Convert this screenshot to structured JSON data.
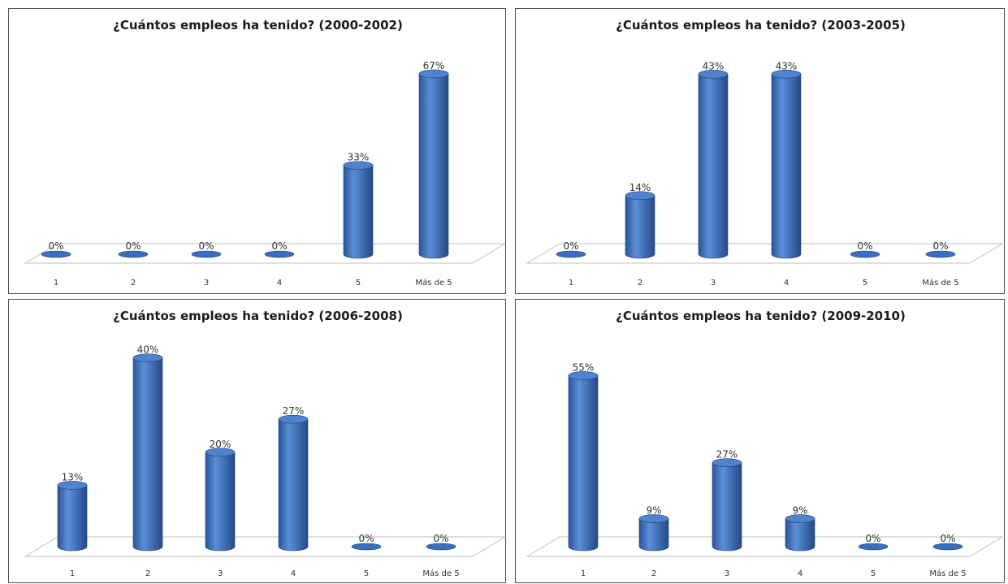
{
  "chart_data": [
    {
      "type": "bar",
      "title": "¿Cuántos empleos ha tenido? (2000-2002)",
      "categories": [
        "1",
        "2",
        "3",
        "4",
        "5",
        "Más de 5"
      ],
      "values": [
        0,
        0,
        0,
        0,
        33,
        67
      ],
      "labels": [
        "0%",
        "0%",
        "0%",
        "0%",
        "33%",
        "67%"
      ],
      "unit": "%",
      "ylim": [
        0,
        70
      ],
      "bar_color": "#3a6fc0"
    },
    {
      "type": "bar",
      "title": "¿Cuántos empleos ha tenido? (2003-2005)",
      "categories": [
        "1",
        "2",
        "3",
        "4",
        "5",
        "Más de 5"
      ],
      "values": [
        0,
        14,
        43,
        43,
        0,
        0
      ],
      "labels": [
        "0%",
        "14%",
        "43%",
        "43%",
        "0%",
        "0%"
      ],
      "unit": "%",
      "ylim": [
        0,
        45
      ],
      "bar_color": "#3a6fc0"
    },
    {
      "type": "bar",
      "title": "¿Cuántos empleos ha tenido? (2006-2008)",
      "categories": [
        "1",
        "2",
        "3",
        "4",
        "5",
        "Más de 5"
      ],
      "values": [
        13,
        40,
        20,
        27,
        0,
        0
      ],
      "labels": [
        "13%",
        "40%",
        "20%",
        "27%",
        "0%",
        "0%"
      ],
      "unit": "%",
      "ylim": [
        0,
        42
      ],
      "bar_color": "#3a6fc0"
    },
    {
      "type": "bar",
      "title": "¿Cuántos empleos ha tenido? (2009-2010)",
      "categories": [
        "1",
        "2",
        "3",
        "4",
        "5",
        "Más de 5"
      ],
      "values": [
        55,
        9,
        27,
        9,
        0,
        0
      ],
      "labels": [
        "55%",
        "9%",
        "27%",
        "9%",
        "0%",
        "0%"
      ],
      "unit": "%",
      "ylim": [
        0,
        58
      ],
      "bar_color": "#3a6fc0"
    }
  ]
}
